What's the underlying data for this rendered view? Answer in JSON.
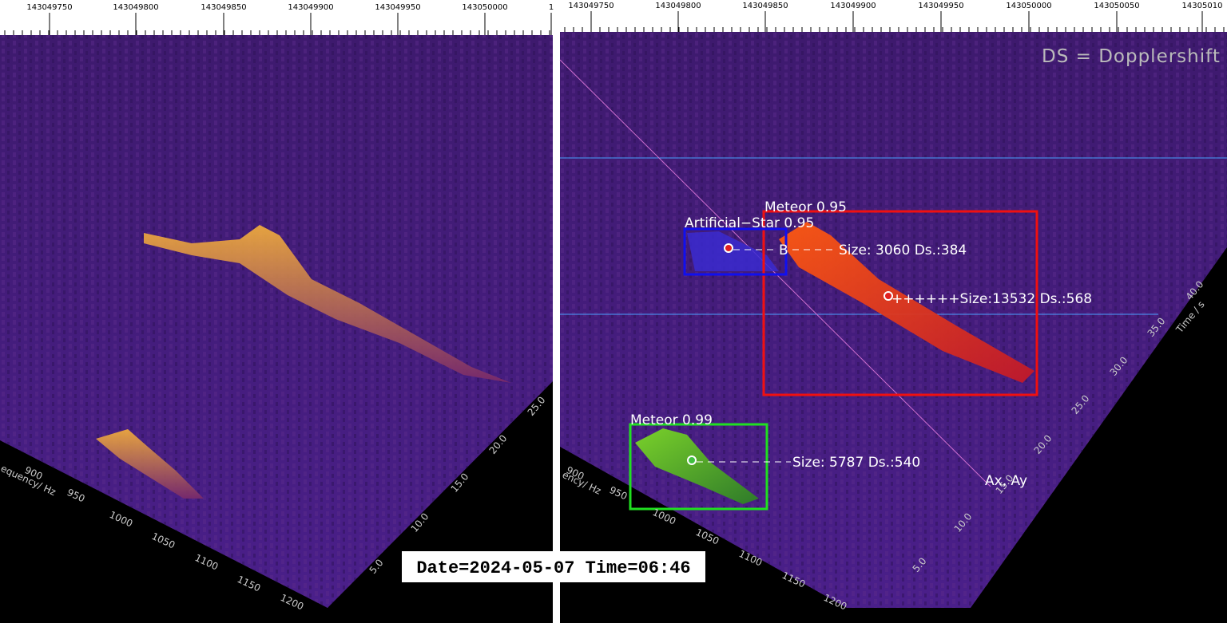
{
  "left_panel": {
    "top_ticks": [
      "143049750",
      "143049800",
      "143049850",
      "143049900",
      "143049950",
      "143050000",
      "1"
    ],
    "frequency_label": "equency/ Hz",
    "frequency_ticks": [
      "900",
      "950",
      "1000",
      "1050",
      "1100",
      "1150",
      "1200"
    ],
    "time_ticks": [
      "5.0",
      "10.0",
      "15.0",
      "20.0",
      "25.0"
    ]
  },
  "right_panel": {
    "top_ticks": [
      "143049750",
      "143049800",
      "143049850",
      "143049900",
      "143049950",
      "143050000",
      "143050050",
      "14305010"
    ],
    "legend": "DS = Dopplershift",
    "frequency_label": "ency/ Hz",
    "frequency_ticks": [
      "900",
      "950",
      "1000",
      "1050",
      "1100",
      "1150",
      "1200"
    ],
    "time_label": "Time / s",
    "time_ticks": [
      "5.0",
      "10.0",
      "15.0",
      "20.0",
      "25.0",
      "30.0",
      "35.0",
      "40.0"
    ],
    "origin_label": "Ax, Ay",
    "detections": [
      {
        "label": "Meteor 0.95",
        "info": "++++++Size:13532 Ds.:568"
      },
      {
        "label": "Artificial−Star 0.95",
        "marker": "B",
        "info": "Size: 3060 Ds.:384"
      },
      {
        "label": "Meteor 0.99",
        "info": "Size: 5787 Ds.:540"
      }
    ]
  },
  "timestamp": "Date=2024-05-07 Time=06:46"
}
